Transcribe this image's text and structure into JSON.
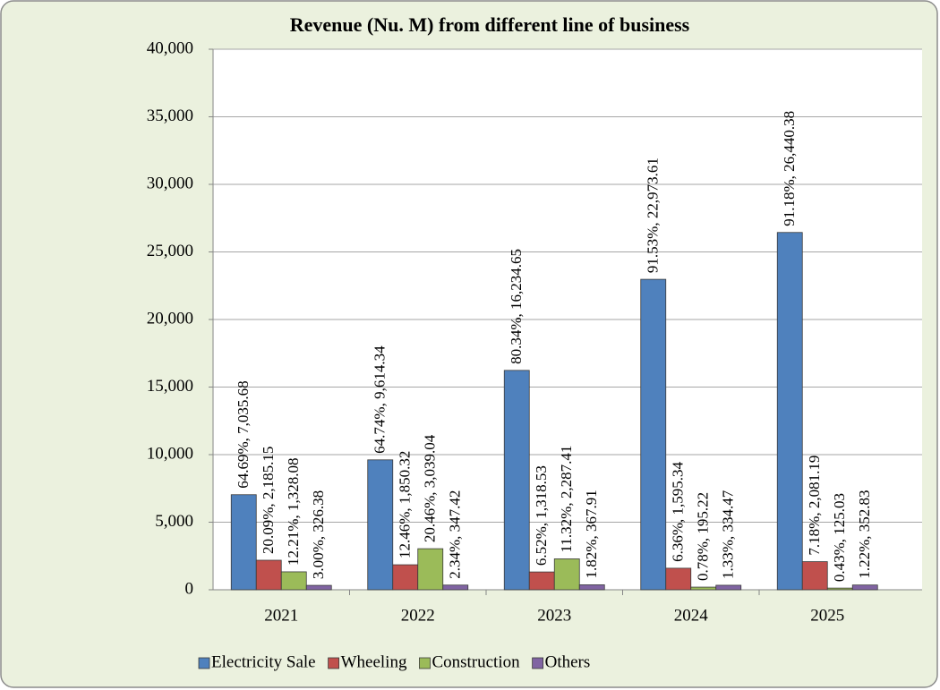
{
  "chart_data": {
    "type": "bar",
    "title": "Revenue (Nu. M) from different line of business",
    "categories": [
      "2021",
      "2022",
      "2023",
      "2024",
      "2025"
    ],
    "series": [
      {
        "name": "Electricity Sale",
        "color": "#4f81bd",
        "values": [
          7035.68,
          9614.34,
          16234.65,
          22973.61,
          26440.38
        ],
        "value_labels": [
          "64.69%, 7,035.68",
          "64.74%, 9,614.34",
          "80.34%, 16,234.65",
          "91.53%, 22,973.61",
          "91.18%, 26,440.38"
        ]
      },
      {
        "name": "Wheeling",
        "color": "#c0504d",
        "values": [
          2185.15,
          1850.32,
          1318.53,
          1595.34,
          2081.19
        ],
        "value_labels": [
          "20.09%, 2,185.15",
          "12.46%, 1,850.32",
          "6.52%, 1,318.53",
          "6.36%, 1,595.34",
          "7.18%, 2,081.19"
        ]
      },
      {
        "name": "Construction",
        "color": "#9bbb59",
        "values": [
          1328.08,
          3039.04,
          2287.41,
          195.22,
          125.03
        ],
        "value_labels": [
          "12.21%, 1,328.08",
          "20.46%, 3,039.04",
          "11.32%, 2,287.41",
          "0.78%, 195.22",
          "0.43%, 125.03"
        ]
      },
      {
        "name": "Others",
        "color": "#8064a2",
        "values": [
          326.38,
          347.42,
          367.91,
          334.47,
          352.83
        ],
        "value_labels": [
          "3.00%, 326.38",
          "2.34%, 347.42",
          "1.82%, 367.91",
          "1.33%, 334.47",
          "1.22%, 352.83"
        ]
      }
    ],
    "ylim": [
      0,
      40000
    ],
    "yticks": [
      0,
      {
        "value": 5000,
        "label": "5,000"
      },
      {
        "value": 10000,
        "label": "10,000"
      },
      {
        "value": 15000,
        "label": "15,000"
      },
      {
        "value": 20000,
        "label": "20,000"
      },
      {
        "value": 25000,
        "label": "25,000"
      },
      {
        "value": 30000,
        "label": "30,000"
      },
      {
        "value": 35000,
        "label": "35,000"
      },
      {
        "value": 40000,
        "label": "40,000"
      }
    ],
    "grid": true,
    "legend": "bottom"
  }
}
